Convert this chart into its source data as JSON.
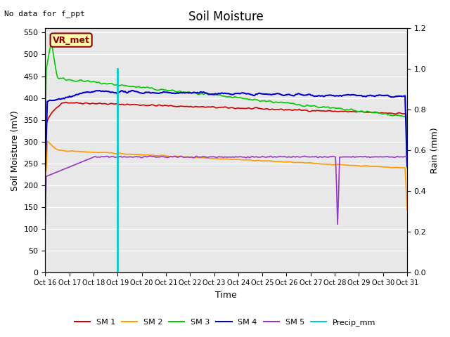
{
  "title": "Soil Moisture",
  "xlabel": "Time",
  "ylabel_left": "Soil Moisture (mV)",
  "ylabel_right": "Rain (mm)",
  "no_data_text": "No data for f_ppt",
  "vr_met_label": "VR_met",
  "xlim": [
    0,
    15
  ],
  "ylim_left": [
    0,
    560
  ],
  "ylim_right": [
    0,
    1.2
  ],
  "yticks_left": [
    0,
    50,
    100,
    150,
    200,
    250,
    300,
    350,
    400,
    450,
    500,
    550
  ],
  "yticks_right": [
    0.0,
    0.2,
    0.4,
    0.6,
    0.8,
    1.0,
    1.2
  ],
  "xtick_labels": [
    "Oct 16",
    "Oct 17",
    "Oct 18",
    "Oct 19",
    "Oct 20",
    "Oct 21",
    "Oct 22",
    "Oct 23",
    "Oct 24",
    "Oct 25",
    "Oct 26",
    "Oct 27",
    "Oct 28",
    "Oct 29",
    "Oct 30",
    "Oct 31"
  ],
  "bg_color": "#e8e8e8",
  "line_colors": {
    "SM1": "#cc0000",
    "SM2": "#ff9900",
    "SM3": "#00cc00",
    "SM4": "#0000cc",
    "SM5": "#9933cc",
    "Precip": "#00cccc"
  },
  "legend_labels": [
    "SM 1",
    "SM 2",
    "SM 3",
    "SM 4",
    "SM 5",
    "Precip_mm"
  ],
  "figsize": [
    6.4,
    4.8
  ],
  "dpi": 100
}
